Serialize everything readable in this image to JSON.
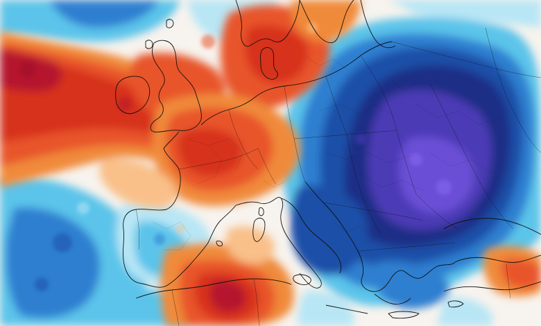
{
  "map": {
    "kind": "temperature-anomaly-map",
    "region": "Europe",
    "labels_visible": false,
    "palette": {
      "deep_red": "#b5122e",
      "red": "#d7301f",
      "orange_red": "#e8552b",
      "orange": "#f08a3a",
      "light_orange": "#f9c08a",
      "neutral": "#f7f3ee",
      "light_cyan": "#b8e6f5",
      "cyan": "#5cc4ea",
      "blue": "#2f7fd0",
      "dark_blue": "#1c4fa8",
      "navy": "#1a2f86",
      "purple": "#4b3bb5",
      "violet": "#6a4fd6",
      "outline": "#111111"
    },
    "features": [
      {
        "id": "warm-atlantic-plume",
        "anomaly": "warm"
      },
      {
        "id": "western-europe-warm",
        "anomaly": "warm"
      },
      {
        "id": "north-africa-warm",
        "anomaly": "warm"
      },
      {
        "id": "eastern-europe-cold",
        "anomaly": "cold"
      },
      {
        "id": "iberia-cool",
        "anomaly": "cool"
      },
      {
        "id": "atlantic-cool-south",
        "anomaly": "cool"
      },
      {
        "id": "north-atlantic-cold",
        "anomaly": "cold"
      },
      {
        "id": "turkey-warm",
        "anomaly": "warm"
      }
    ]
  }
}
